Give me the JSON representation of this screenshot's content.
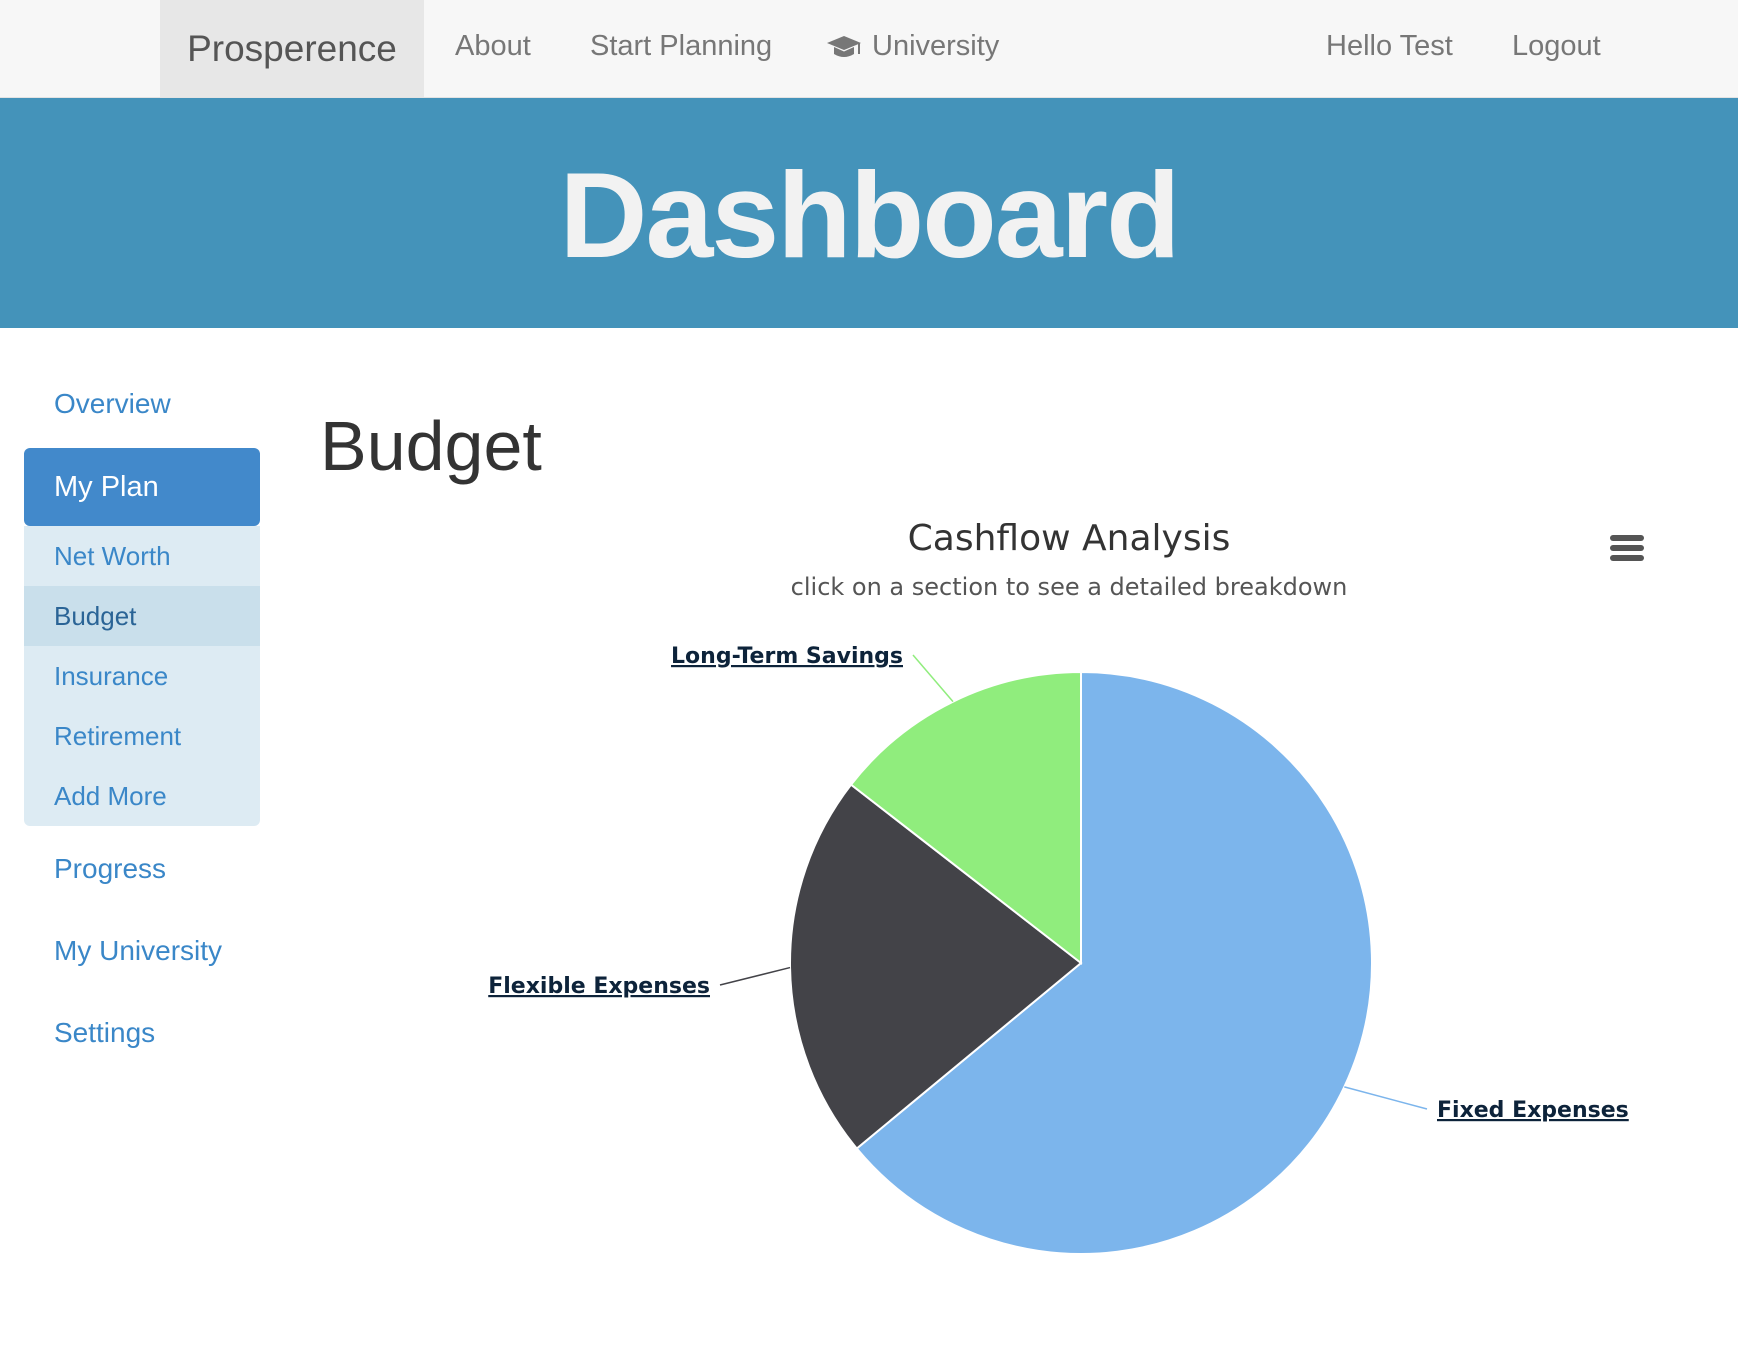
{
  "navbar": {
    "brand": "Prosperence",
    "links": [
      "About",
      "Start Planning",
      "University"
    ],
    "greeting": "Hello Test",
    "logout": "Logout"
  },
  "jumbotron": {
    "title": "Dashboard"
  },
  "sidebar": {
    "overview": "Overview",
    "active": "My Plan",
    "sub_items": [
      "Net Worth",
      "Budget",
      "Insurance",
      "Retirement",
      "Add More"
    ],
    "selected_sub": "Budget",
    "bottom_items": [
      "Progress",
      "My University",
      "Settings"
    ]
  },
  "main": {
    "heading": "Budget"
  },
  "chart_data": {
    "type": "pie",
    "title": "Cashflow Analysis",
    "subtitle": "click on a section to see a detailed breakdown",
    "slices": [
      {
        "name": "Fixed Expenses",
        "value": 64,
        "color": "#7cb5ec"
      },
      {
        "name": "Flexible Expenses",
        "value": 21.5,
        "color": "#434348"
      },
      {
        "name": "Long-Term Savings",
        "value": 14.5,
        "color": "#90ed7d"
      }
    ],
    "start_angle": "12 o'clock, clockwise",
    "legend": "none (data labels with connectors)"
  },
  "colors": {
    "jumbotron": "#4493ba",
    "sidebar_active": "#4289cb",
    "link": "#3a87c8"
  }
}
